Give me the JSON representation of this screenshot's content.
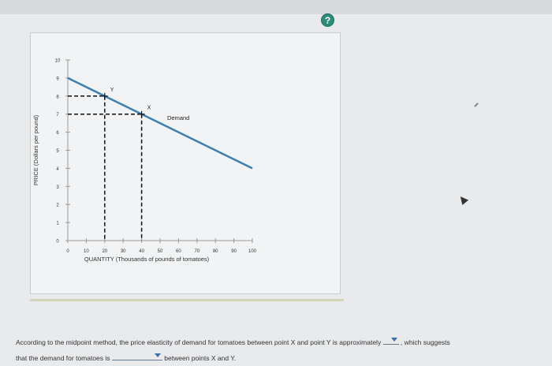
{
  "header": {
    "title": ""
  },
  "help_label": "?",
  "chart_data": {
    "type": "line",
    "xlabel": "QUANTITY (Thousands of pounds of tomatoes)",
    "ylabel": "PRICE (Dollars per pound)",
    "xlim": [
      0,
      100
    ],
    "ylim": [
      0,
      10
    ],
    "x_ticks": [
      0,
      10,
      20,
      30,
      40,
      50,
      60,
      70,
      80,
      90,
      100
    ],
    "y_ticks": [
      0,
      1,
      2,
      3,
      4,
      5,
      6,
      7,
      8,
      9,
      10
    ],
    "series": [
      {
        "name": "Demand",
        "points": [
          [
            0,
            9
          ],
          [
            100,
            4
          ]
        ]
      }
    ],
    "points": [
      {
        "label": "Y",
        "x": 20,
        "y": 8
      },
      {
        "label": "X",
        "x": 40,
        "y": 7
      }
    ],
    "demand_label": "Demand",
    "line_color": "#3b7fb5"
  },
  "question": {
    "part1": "According to the midpoint method, the price elasticity of demand for tomatoes between point X and point Y is approximately",
    "part2": ", which suggests",
    "part3": "that the demand for tomatoes is",
    "part4": "between points X and Y."
  }
}
